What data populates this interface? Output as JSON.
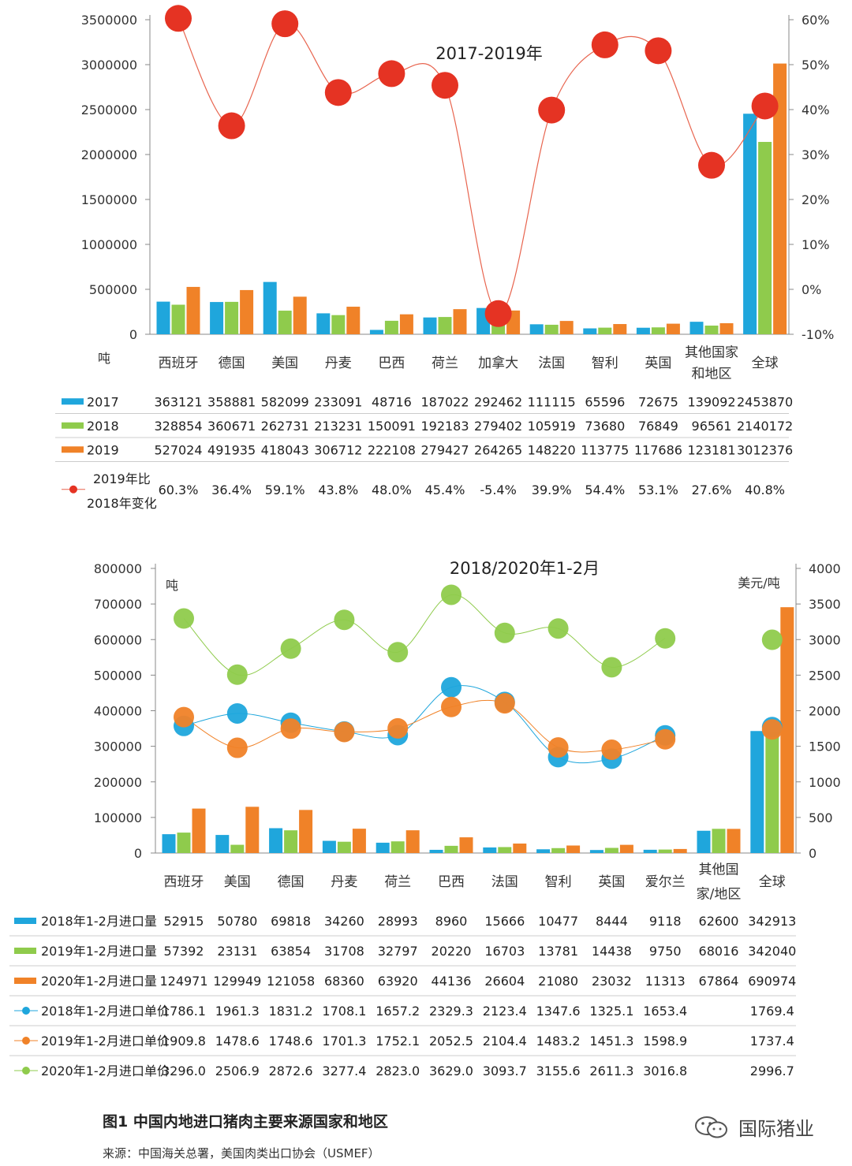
{
  "figure": {
    "caption": "图1  中国内地进口猪肉主要来源国家和地区",
    "source": "来源：中国海关总署，美国肉类出口协会（USMEF）",
    "watermark": "国际猪业"
  },
  "colors": {
    "blue": "#1fa6dc",
    "green": "#8fcb4c",
    "orange": "#f08228",
    "red": "#e53323",
    "red_line": "#e8654f",
    "axis": "#888888",
    "grid": "#cccccc"
  },
  "chart_data": [
    {
      "type": "bar",
      "title": "2017-2019年",
      "ylabel": "吨",
      "ylim": [
        0,
        3500000
      ],
      "yticks": [
        "0",
        "500000",
        "1000000",
        "1500000",
        "2000000",
        "2500000",
        "3000000",
        "3500000"
      ],
      "y2lim": [
        -10,
        60
      ],
      "y2ticks": [
        "-10%",
        "0%",
        "10%",
        "20%",
        "30%",
        "40%",
        "50%",
        "60%"
      ],
      "categories": [
        "西班牙",
        "德国",
        "美国",
        "丹麦",
        "巴西",
        "荷兰",
        "加拿大",
        "法国",
        "智利",
        "英国",
        "其他国家和地区",
        "全球"
      ],
      "category_lines": [
        [
          "西班牙"
        ],
        [
          "德国"
        ],
        [
          "美国"
        ],
        [
          "丹麦"
        ],
        [
          "巴西"
        ],
        [
          "荷兰"
        ],
        [
          "加拿大"
        ],
        [
          "法国"
        ],
        [
          "智利"
        ],
        [
          "英国"
        ],
        [
          "其他国家",
          "和地区"
        ],
        [
          "全球"
        ]
      ],
      "series": [
        {
          "name": "2017",
          "kind": "bar",
          "color": "#1fa6dc",
          "values": [
            363121,
            358881,
            582099,
            233091,
            48716,
            187022,
            292462,
            111115,
            65596,
            72675,
            139092,
            2453870
          ]
        },
        {
          "name": "2018",
          "kind": "bar",
          "color": "#8fcb4c",
          "values": [
            328854,
            360671,
            262731,
            213231,
            150091,
            192183,
            279402,
            105919,
            73680,
            76849,
            96561,
            2140172
          ]
        },
        {
          "name": "2019",
          "kind": "bar",
          "color": "#f08228",
          "values": [
            527024,
            491935,
            418043,
            306712,
            222108,
            279427,
            264265,
            148220,
            113775,
            117686,
            123181,
            3012376
          ]
        },
        {
          "name": "2019年比2018年变化",
          "legend_lines": [
            "2019年比",
            "2018年变化"
          ],
          "kind": "line",
          "axis": "right",
          "color": "#e53323",
          "values": [
            60.3,
            36.4,
            59.1,
            43.8,
            48.0,
            45.4,
            -5.4,
            39.9,
            54.4,
            53.1,
            27.6,
            40.8
          ],
          "labels": [
            "60.3%",
            "36.4%",
            "59.1%",
            "43.8%",
            "48.0%",
            "45.4%",
            "-5.4%",
            "39.9%",
            "54.4%",
            "53.1%",
            "27.6%",
            "40.8%"
          ]
        }
      ]
    },
    {
      "type": "bar",
      "title": "2018/2020年1-2月",
      "ylabel": "吨",
      "y2label": "美元/吨",
      "ylim": [
        0,
        800000
      ],
      "yticks": [
        "0",
        "100000",
        "200000",
        "300000",
        "400000",
        "500000",
        "600000",
        "700000",
        "800000"
      ],
      "y2lim": [
        0,
        4000
      ],
      "y2ticks": [
        "0",
        "500",
        "1000",
        "1500",
        "2000",
        "2500",
        "3000",
        "3500",
        "4000"
      ],
      "categories": [
        "西班牙",
        "美国",
        "德国",
        "丹麦",
        "荷兰",
        "巴西",
        "法国",
        "智利",
        "英国",
        "爱尔兰",
        "其他国家/地区",
        "全球"
      ],
      "category_lines": [
        [
          "西班牙"
        ],
        [
          "美国"
        ],
        [
          "德国"
        ],
        [
          "丹麦"
        ],
        [
          "荷兰"
        ],
        [
          "巴西"
        ],
        [
          "法国"
        ],
        [
          "智利"
        ],
        [
          "英国"
        ],
        [
          "爱尔兰"
        ],
        [
          "其他国",
          "家/地区"
        ],
        [
          "全球"
        ]
      ],
      "series": [
        {
          "name": "2018年1-2月进口量",
          "kind": "bar",
          "color": "#1fa6dc",
          "values": [
            52915,
            50780,
            69818,
            34260,
            28993,
            8960,
            15666,
            10477,
            8444,
            9118,
            62600,
            342913
          ]
        },
        {
          "name": "2019年1-2月进口量",
          "kind": "bar",
          "color": "#8fcb4c",
          "values": [
            57392,
            23131,
            63854,
            31708,
            32797,
            20220,
            16703,
            13781,
            14438,
            9750,
            68016,
            342040
          ]
        },
        {
          "name": "2020年1-2月进口量",
          "kind": "bar",
          "color": "#f08228",
          "values": [
            124971,
            129949,
            121058,
            68360,
            63920,
            44136,
            26604,
            21080,
            23032,
            11313,
            67864,
            690974
          ]
        },
        {
          "name": "2018年1-2月进口单价",
          "kind": "line",
          "axis": "right",
          "color": "#1fa6dc",
          "values": [
            1786.1,
            1961.3,
            1831.2,
            1708.1,
            1657.2,
            2329.3,
            2123.4,
            1347.6,
            1325.1,
            1653.4,
            null,
            1769.4
          ],
          "labels": [
            "1786.1",
            "1961.3",
            "1831.2",
            "1708.1",
            "1657.2",
            "2329.3",
            "2123.4",
            "1347.6",
            "1325.1",
            "1653.4",
            "",
            "1769.4"
          ]
        },
        {
          "name": "2019年1-2月进口单价",
          "kind": "line",
          "axis": "right",
          "color": "#f08228",
          "values": [
            1909.8,
            1478.6,
            1748.6,
            1701.3,
            1752.1,
            2052.5,
            2104.4,
            1483.2,
            1451.3,
            1598.9,
            null,
            1737.4
          ],
          "labels": [
            "1909.8",
            "1478.6",
            "1748.6",
            "1701.3",
            "1752.1",
            "2052.5",
            "2104.4",
            "1483.2",
            "1451.3",
            "1598.9",
            "",
            "1737.4"
          ]
        },
        {
          "name": "2020年1-2月进口单价",
          "kind": "line",
          "axis": "right",
          "color": "#8fcb4c",
          "values": [
            3296.0,
            2506.9,
            2872.6,
            3277.4,
            2823.0,
            3629.0,
            3093.7,
            3155.6,
            2611.3,
            3016.8,
            null,
            2996.7
          ],
          "labels": [
            "3296.0",
            "2506.9",
            "2872.6",
            "3277.4",
            "2823.0",
            "3629.0",
            "3093.7",
            "3155.6",
            "2611.3",
            "3016.8",
            "",
            "2996.7"
          ]
        }
      ]
    }
  ]
}
